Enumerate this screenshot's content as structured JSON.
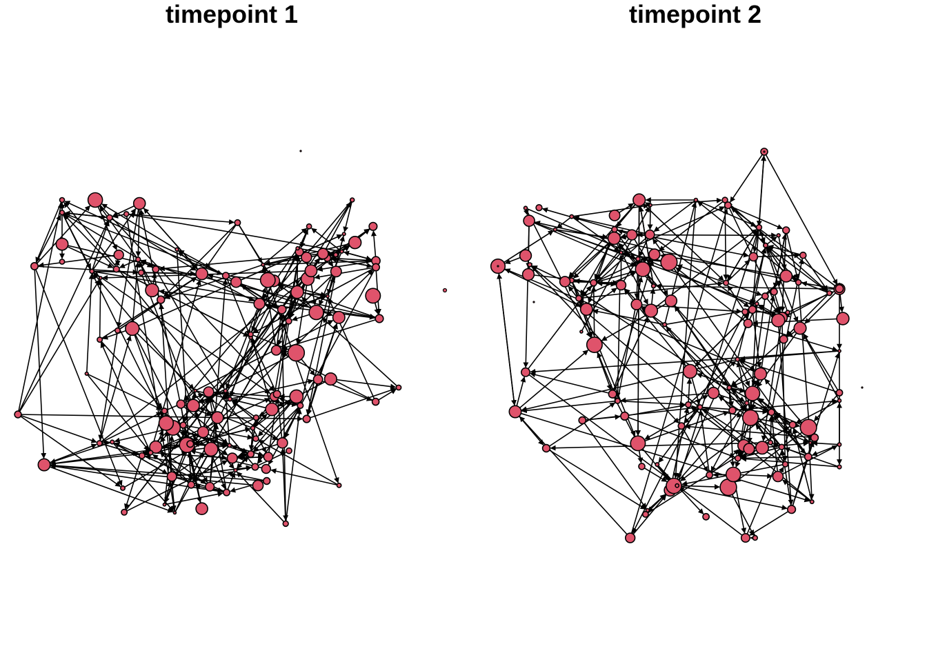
{
  "panels": [
    {
      "title": "timepoint 1",
      "node_count": 120,
      "edge_count": 330,
      "isolate_count": 2
    },
    {
      "title": "timepoint 2",
      "node_count": 120,
      "edge_count": 330,
      "isolate_count": 4
    }
  ],
  "colors": {
    "node_fill": "#DF536B",
    "node_stroke": "#000000",
    "edge": "#000000",
    "background": "#FFFFFF"
  },
  "graph_type": "directed-network"
}
